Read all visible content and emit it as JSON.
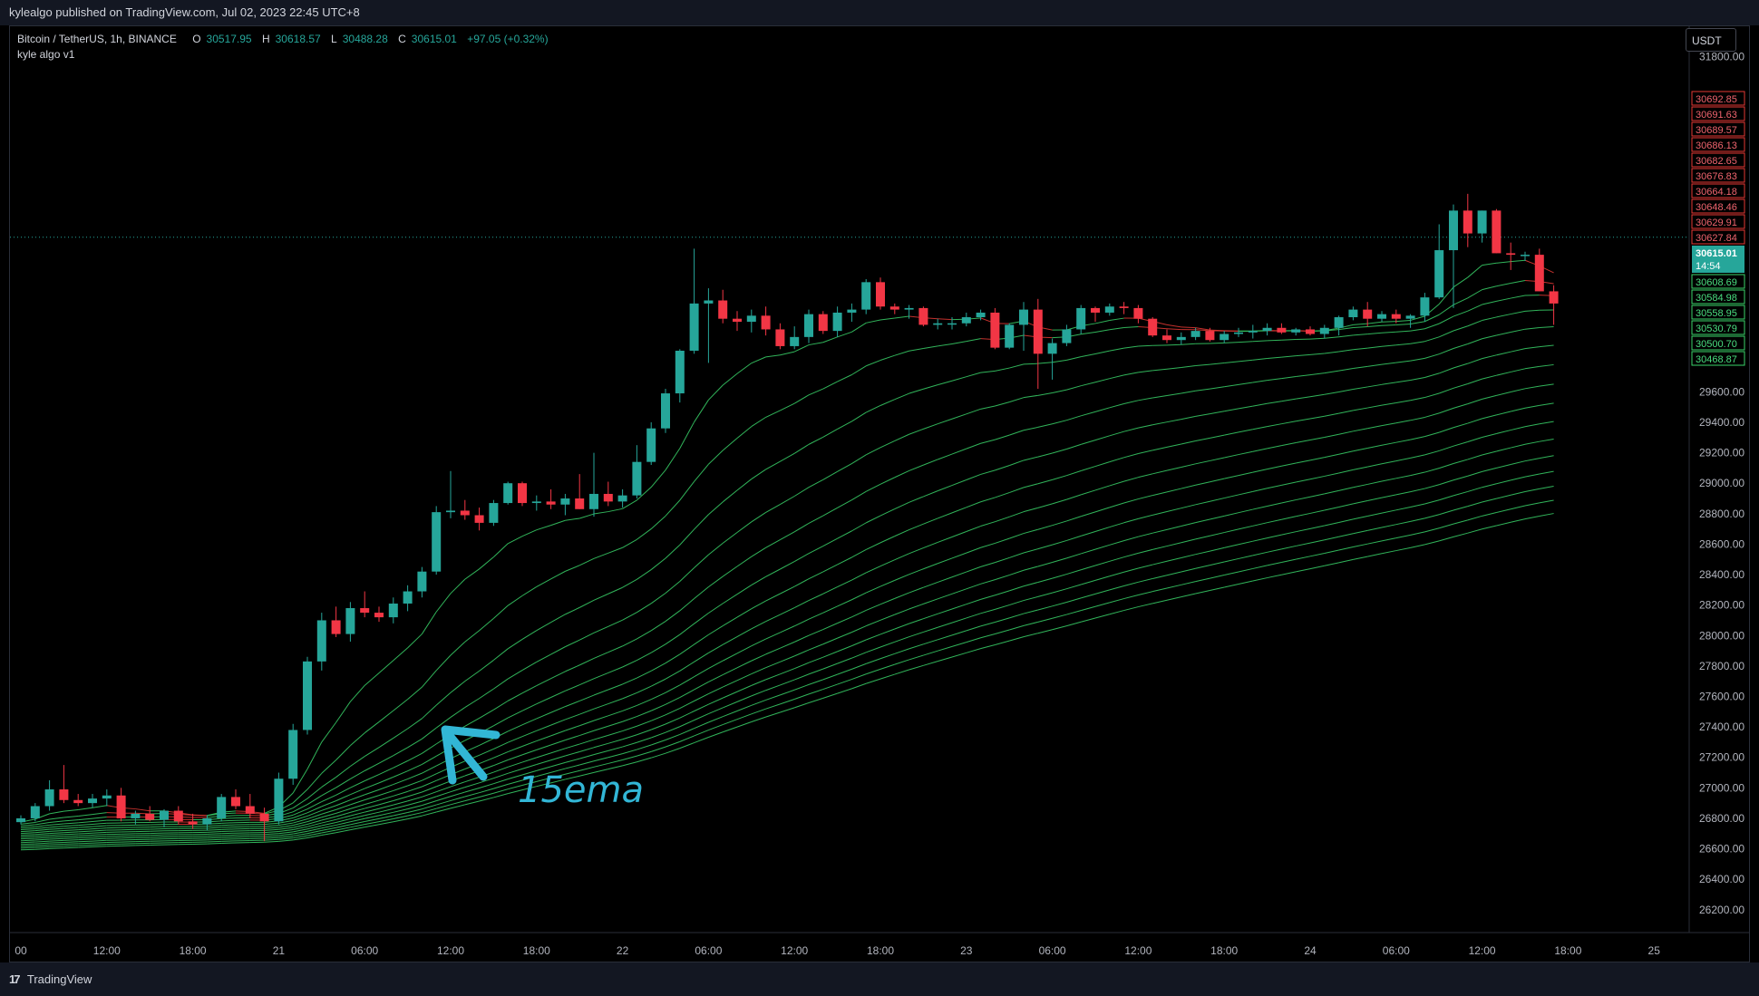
{
  "header": {
    "published": "kylealgo published on TradingView.com, Jul 02, 2023 22:45 UTC+8"
  },
  "legend": {
    "symbol": "Bitcoin / TetherUS, 1h, BINANCE",
    "o_label": "O",
    "o": "30517.95",
    "h_label": "H",
    "h": "30618.57",
    "l_label": "L",
    "l": "30488.28",
    "c_label": "C",
    "c": "30615.01",
    "change": "+97.05 (+0.32%)",
    "indicator": "kyle algo v1"
  },
  "currency": "USDT",
  "annotation": {
    "text": "15ema",
    "color": "#32b6d6"
  },
  "footer": {
    "brand": "TradingView"
  },
  "colors": {
    "up": "#26a69a",
    "down": "#f23645",
    "ema_green": "#3ad36a",
    "ema_red": "#e53935"
  },
  "chart_data": {
    "type": "candlestick",
    "y_ticks": [
      26200,
      26400,
      26600,
      26800,
      27000,
      27200,
      27400,
      27600,
      27800,
      28000,
      28200,
      28400,
      28600,
      28800,
      29000,
      29200,
      29400,
      29600,
      29800,
      31800
    ],
    "y_tick_labels": [
      "26200.00",
      "26400.00",
      "26600.00",
      "26800.00",
      "27000.00",
      "27200.00",
      "27400.00",
      "27600.00",
      "27800.00",
      "28000.00",
      "28200.00",
      "28400.00",
      "28600.00",
      "28800.00",
      "29000.00",
      "29200.00",
      "29400.00",
      "29600.00",
      "29800.00",
      "31800.00"
    ],
    "ylim": [
      26050,
      32000
    ],
    "x_ticks": [
      {
        "label": "00",
        "bar": 0
      },
      {
        "label": "12:00",
        "bar": 6
      },
      {
        "label": "18:00",
        "bar": 12
      },
      {
        "label": "21",
        "bar": 18
      },
      {
        "label": "06:00",
        "bar": 24
      },
      {
        "label": "12:00",
        "bar": 30
      },
      {
        "label": "18:00",
        "bar": 36
      },
      {
        "label": "22",
        "bar": 42
      },
      {
        "label": "06:00",
        "bar": 48
      },
      {
        "label": "12:00",
        "bar": 54
      },
      {
        "label": "18:00",
        "bar": 60
      },
      {
        "label": "23",
        "bar": 66
      },
      {
        "label": "06:00",
        "bar": 72
      },
      {
        "label": "12:00",
        "bar": 78
      },
      {
        "label": "18:00",
        "bar": 84
      },
      {
        "label": "24",
        "bar": 90
      },
      {
        "label": "06:00",
        "bar": 96
      },
      {
        "label": "12:00",
        "bar": 102
      },
      {
        "label": "18:00",
        "bar": 108
      },
      {
        "label": "25",
        "bar": 114
      }
    ],
    "candles": [
      [
        26775,
        26820,
        26760,
        26800
      ],
      [
        26800,
        26900,
        26780,
        26880
      ],
      [
        26880,
        27050,
        26850,
        26990
      ],
      [
        26990,
        27150,
        26900,
        26920
      ],
      [
        26920,
        26960,
        26880,
        26900
      ],
      [
        26900,
        26960,
        26870,
        26930
      ],
      [
        26930,
        26990,
        26880,
        26950
      ],
      [
        26950,
        27000,
        26780,
        26800
      ],
      [
        26800,
        26850,
        26760,
        26830
      ],
      [
        26830,
        26880,
        26780,
        26790
      ],
      [
        26790,
        26860,
        26740,
        26850
      ],
      [
        26850,
        26880,
        26760,
        26780
      ],
      [
        26780,
        26830,
        26730,
        26760
      ],
      [
        26760,
        26820,
        26720,
        26800
      ],
      [
        26800,
        26960,
        26780,
        26940
      ],
      [
        26940,
        26990,
        26860,
        26880
      ],
      [
        26880,
        26960,
        26800,
        26830
      ],
      [
        26830,
        26870,
        26650,
        26780
      ],
      [
        26780,
        27100,
        26760,
        27060
      ],
      [
        27060,
        27420,
        27020,
        27380
      ],
      [
        27380,
        27860,
        27350,
        27830
      ],
      [
        27830,
        28150,
        27770,
        28100
      ],
      [
        28100,
        28190,
        27990,
        28010
      ],
      [
        28010,
        28220,
        27960,
        28180
      ],
      [
        28180,
        28290,
        28120,
        28150
      ],
      [
        28150,
        28190,
        28090,
        28120
      ],
      [
        28120,
        28250,
        28080,
        28210
      ],
      [
        28210,
        28330,
        28160,
        28290
      ],
      [
        28290,
        28450,
        28250,
        28420
      ],
      [
        28420,
        28850,
        28400,
        28810
      ],
      [
        28810,
        29080,
        28770,
        28820
      ],
      [
        28820,
        28890,
        28760,
        28790
      ],
      [
        28790,
        28840,
        28690,
        28740
      ],
      [
        28740,
        28890,
        28720,
        28870
      ],
      [
        28870,
        29010,
        28860,
        29000
      ],
      [
        29000,
        29010,
        28850,
        28870
      ],
      [
        28870,
        28920,
        28820,
        28880
      ],
      [
        28880,
        28960,
        28830,
        28860
      ],
      [
        28860,
        28930,
        28790,
        28900
      ],
      [
        28900,
        29060,
        28830,
        28830
      ],
      [
        28830,
        29200,
        28780,
        28930
      ],
      [
        28930,
        29010,
        28850,
        28880
      ],
      [
        28880,
        28960,
        28840,
        28920
      ],
      [
        28920,
        29250,
        28900,
        29140
      ],
      [
        29140,
        29400,
        29120,
        29360
      ],
      [
        29360,
        29620,
        29330,
        29590
      ],
      [
        29590,
        29880,
        29530,
        29870
      ],
      [
        29870,
        30540,
        29850,
        30180
      ],
      [
        30180,
        30280,
        29790,
        30200
      ],
      [
        30200,
        30270,
        30050,
        30080
      ],
      [
        30080,
        30130,
        30000,
        30060
      ],
      [
        30060,
        30140,
        29990,
        30100
      ],
      [
        30100,
        30160,
        29970,
        30010
      ],
      [
        30010,
        30050,
        29880,
        29900
      ],
      [
        29900,
        30030,
        29880,
        29960
      ],
      [
        29960,
        30140,
        29920,
        30110
      ],
      [
        30110,
        30130,
        29980,
        30000
      ],
      [
        30000,
        30160,
        29960,
        30120
      ],
      [
        30120,
        30180,
        30060,
        30140
      ],
      [
        30140,
        30340,
        30110,
        30320
      ],
      [
        30320,
        30350,
        30140,
        30160
      ],
      [
        30160,
        30180,
        30110,
        30140
      ],
      [
        30140,
        30170,
        30080,
        30150
      ],
      [
        30150,
        30160,
        30030,
        30040
      ],
      [
        30040,
        30080,
        30010,
        30050
      ],
      [
        30050,
        30090,
        30010,
        30050
      ],
      [
        30050,
        30120,
        30030,
        30090
      ],
      [
        30090,
        30140,
        30070,
        30120
      ],
      [
        30120,
        30150,
        29880,
        29890
      ],
      [
        29890,
        30050,
        29880,
        30040
      ],
      [
        30040,
        30190,
        29870,
        30140
      ],
      [
        30140,
        30210,
        29620,
        29850
      ],
      [
        29850,
        29950,
        29680,
        29920
      ],
      [
        29920,
        30040,
        29900,
        30010
      ],
      [
        30010,
        30170,
        29980,
        30150
      ],
      [
        30150,
        30160,
        30060,
        30120
      ],
      [
        30120,
        30180,
        30100,
        30160
      ],
      [
        30160,
        30190,
        30110,
        30150
      ],
      [
        30150,
        30170,
        30050,
        30080
      ],
      [
        30080,
        30090,
        29960,
        29970
      ],
      [
        29970,
        30010,
        29920,
        29940
      ],
      [
        29940,
        29990,
        29910,
        29960
      ],
      [
        29960,
        30020,
        29940,
        30000
      ],
      [
        30000,
        30020,
        29930,
        29940
      ],
      [
        29940,
        30000,
        29920,
        29980
      ],
      [
        29980,
        30020,
        29960,
        29990
      ],
      [
        29990,
        30040,
        29950,
        30000
      ],
      [
        30000,
        30050,
        29970,
        30020
      ],
      [
        30020,
        30050,
        29980,
        29990
      ],
      [
        29990,
        30020,
        29970,
        30010
      ],
      [
        30010,
        30030,
        29970,
        29980
      ],
      [
        29980,
        30040,
        29950,
        30020
      ],
      [
        30020,
        30100,
        29970,
        30090
      ],
      [
        30090,
        30160,
        30070,
        30140
      ],
      [
        30140,
        30190,
        30030,
        30080
      ],
      [
        30080,
        30130,
        30060,
        30110
      ],
      [
        30110,
        30140,
        30050,
        30080
      ],
      [
        30080,
        30110,
        30020,
        30100
      ],
      [
        30100,
        30250,
        30060,
        30220
      ],
      [
        30220,
        30700,
        30210,
        30530
      ],
      [
        30530,
        30830,
        30150,
        30790
      ],
      [
        30790,
        30900,
        30550,
        30640
      ],
      [
        30640,
        30790,
        30580,
        30790
      ],
      [
        30790,
        30800,
        30510,
        30510
      ],
      [
        30510,
        30580,
        30400,
        30500
      ],
      [
        30500,
        30520,
        30460,
        30500
      ],
      [
        30500,
        30540,
        30260,
        30260
      ],
      [
        30260,
        30300,
        30040,
        30180
      ]
    ],
    "ema_levels": [
      {
        "value": "30692.85",
        "tone": "red"
      },
      {
        "value": "30691.63",
        "tone": "red"
      },
      {
        "value": "30689.57",
        "tone": "red"
      },
      {
        "value": "30686.13",
        "tone": "red"
      },
      {
        "value": "30682.65",
        "tone": "red"
      },
      {
        "value": "30676.83",
        "tone": "red"
      },
      {
        "value": "30664.18",
        "tone": "red"
      },
      {
        "value": "30648.46",
        "tone": "red"
      },
      {
        "value": "30629.91",
        "tone": "red"
      },
      {
        "value": "30627.84",
        "tone": "red"
      },
      {
        "value": "30608.69",
        "tone": "green"
      },
      {
        "value": "30584.98",
        "tone": "green"
      },
      {
        "value": "30558.95",
        "tone": "green"
      },
      {
        "value": "30530.79",
        "tone": "green"
      },
      {
        "value": "30500.70",
        "tone": "green"
      },
      {
        "value": "30468.87",
        "tone": "green"
      }
    ],
    "last_price": {
      "value": "30615.01",
      "countdown": "14:54"
    }
  }
}
